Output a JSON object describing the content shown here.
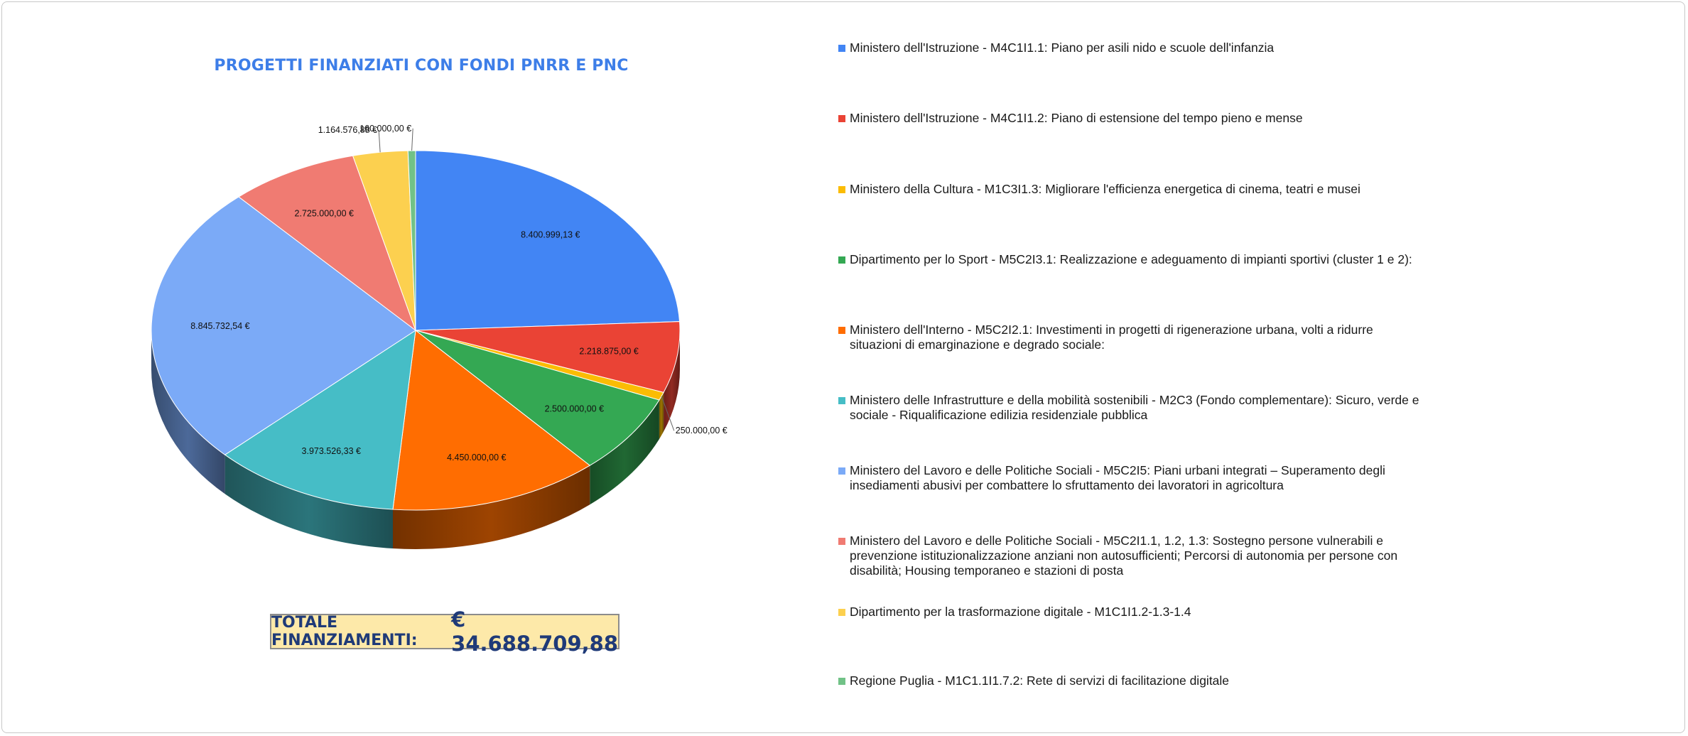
{
  "chart_data": {
    "type": "pie",
    "title": "PROGETTI FINANZIATI CON FONDI PNRR E PNC",
    "series": [
      {
        "name": "Ministero dell'Istruzione - M4C1I1.1: Piano per asili nido e scuole dell'infanzia",
        "value": 8400999.13,
        "label": "8.400.999,13 €",
        "color": "#4285f4"
      },
      {
        "name": "Ministero dell'Istruzione - M4C1I1.2: Piano di estensione del tempo pieno e mense",
        "value": 2218875.0,
        "label": "2.218.875,00 €",
        "color": "#ea4335"
      },
      {
        "name": "Ministero della Cultura - M1C3I1.3: Migliorare l'efficienza energetica di cinema, teatri e musei",
        "value": 250000.0,
        "label": "250.000,00 €",
        "color": "#fbbc04"
      },
      {
        "name": "Dipartimento per lo Sport - M5C2I3.1: Realizzazione e adeguamento di impianti sportivi (cluster 1 e 2):",
        "value": 2500000.0,
        "label": "2.500.000,00 €",
        "color": "#34a853"
      },
      {
        "name": "Ministero dell'Interno - M5C2I2.1: Investimenti in progetti di rigenerazione urbana, volti a ridurre situazioni di emarginazione e degrado sociale:",
        "value": 4450000.0,
        "label": "4.450.000,00 €",
        "color": "#ff6d01"
      },
      {
        "name": "Ministero delle Infrastrutture e della mobilità sostenibili - M2C3 (Fondo complementare): Sicuro, verde e sociale - Riqualificazione edilizia residenziale pubblica",
        "value": 3973526.33,
        "label": "3.973.526,33 €",
        "color": "#46bdc6"
      },
      {
        "name": "Ministero del Lavoro e delle Politiche Sociali - M5C2I5: Piani urbani integrati – Superamento degli insediamenti abusivi per combattere lo sfruttamento dei lavoratori in agricoltura",
        "value": 8845732.54,
        "label": "8.845.732,54 €",
        "color": "#7baaf7"
      },
      {
        "name": "Ministero del Lavoro e delle Politiche Sociali - M5C2I1.1, 1.2, 1.3: Sostegno persone vulnerabili e prevenzione istituzionalizzazione anziani non autosufficienti; Percorsi di autonomia per persone con disabilità; Housing temporaneo e stazioni di posta",
        "value": 2725000.0,
        "label": "2.725.000,00 €",
        "color": "#f07b72"
      },
      {
        "name": "Dipartimento per la trasformazione digitale - M1C1I1.2-1.3-1.4",
        "value": 1164576.88,
        "label": "1.164.576,88 €",
        "color": "#fcd04f"
      },
      {
        "name": "Regione Puglia - M1C1.1I1.7.2: Rete di servizi di facilitazione digitale",
        "value": 160000.0,
        "label": "160.000,00 €",
        "color": "#71c287"
      }
    ],
    "legend_position": "right"
  },
  "total": {
    "label": "TOTALE FINANZIAMENTI:",
    "value": "€ 34.688.709,88"
  }
}
